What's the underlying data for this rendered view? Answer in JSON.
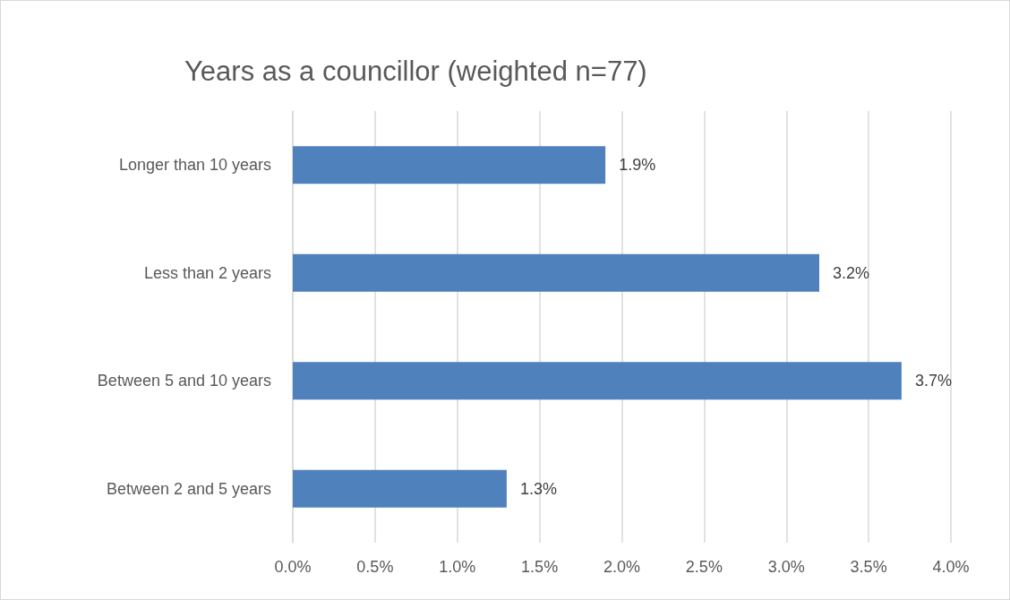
{
  "chart_data": {
    "type": "bar",
    "orientation": "horizontal",
    "title": "Years as a councillor (weighted n=77)",
    "categories": [
      "Longer than 10 years",
      "Less than 2 years",
      "Between 5 and 10 years",
      "Between 2 and 5 years"
    ],
    "values": [
      1.9,
      3.2,
      3.7,
      1.3
    ],
    "value_labels": [
      "1.9%",
      "3.2%",
      "3.7%",
      "1.3%"
    ],
    "color": "#4f81bd",
    "xlim": [
      0,
      4
    ],
    "xticks": [
      {
        "value": 0,
        "label": "0.0%"
      },
      {
        "value": 0.5,
        "label": "0.5%"
      },
      {
        "value": 1,
        "label": "1.0%"
      },
      {
        "value": 1.5,
        "label": "1.5%"
      },
      {
        "value": 2,
        "label": "2.0%"
      },
      {
        "value": 2.5,
        "label": "2.5%"
      },
      {
        "value": 3,
        "label": "3.0%"
      },
      {
        "value": 3.5,
        "label": "3.5%"
      },
      {
        "value": 4,
        "label": "4.0%"
      }
    ],
    "grid": "x"
  }
}
